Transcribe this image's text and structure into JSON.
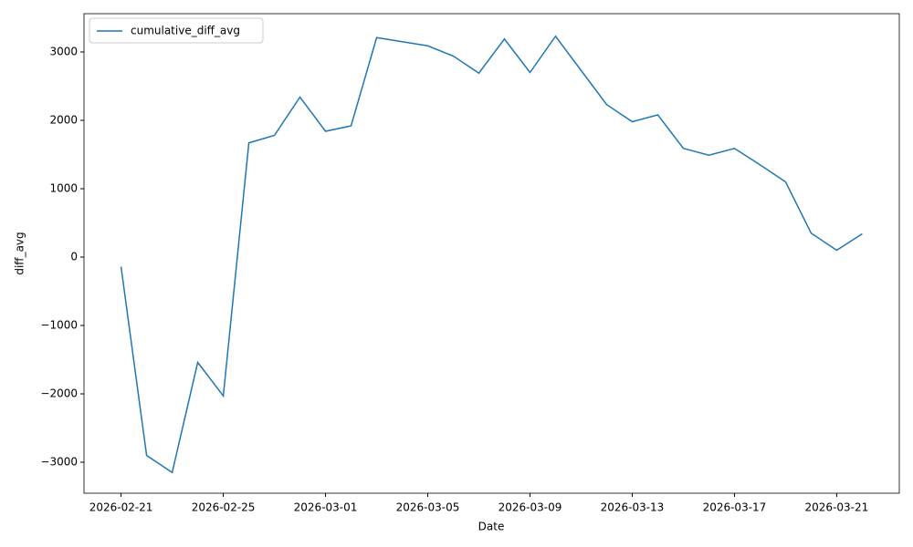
{
  "chart_data": {
    "type": "line",
    "x_label": "Date",
    "y_label": "diff_avg",
    "x": [
      "2026-02-21",
      "2026-02-22",
      "2026-02-23",
      "2026-02-24",
      "2026-02-25",
      "2026-02-26",
      "2026-02-27",
      "2026-02-28",
      "2026-03-01",
      "2026-03-02",
      "2026-03-03",
      "2026-03-04",
      "2026-03-05",
      "2026-03-06",
      "2026-03-07",
      "2026-03-08",
      "2026-03-09",
      "2026-03-10",
      "2026-03-11",
      "2026-03-12",
      "2026-03-13",
      "2026-03-14",
      "2026-03-15",
      "2026-03-16",
      "2026-03-17",
      "2026-03-18",
      "2026-03-19",
      "2026-03-20",
      "2026-03-21",
      "2026-03-22"
    ],
    "series": [
      {
        "name": "cumulative_diff_avg",
        "color": "#1f77b4",
        "values": [
          -140,
          -2900,
          -3150,
          -1540,
          -2030,
          1670,
          1780,
          2340,
          1840,
          1920,
          3210,
          3150,
          3090,
          2940,
          2690,
          3190,
          2700,
          3230,
          2730,
          2230,
          1980,
          2080,
          1590,
          1490,
          1590,
          1350,
          1100,
          350,
          100,
          340
        ]
      }
    ],
    "ylim": [
      -3453,
      3560
    ],
    "yticks": [
      {
        "value": -3000,
        "label": "−3000"
      },
      {
        "value": -2000,
        "label": "−2000"
      },
      {
        "value": -1000,
        "label": "−1000"
      },
      0,
      1000,
      2000,
      3000
    ],
    "xticks": [
      "2026-02-21",
      "2026-02-25",
      "2026-03-01",
      "2026-03-05",
      "2026-03-09",
      "2026-03-13",
      "2026-03-17",
      "2026-03-21"
    ],
    "grid": false,
    "legend": "upper left"
  }
}
